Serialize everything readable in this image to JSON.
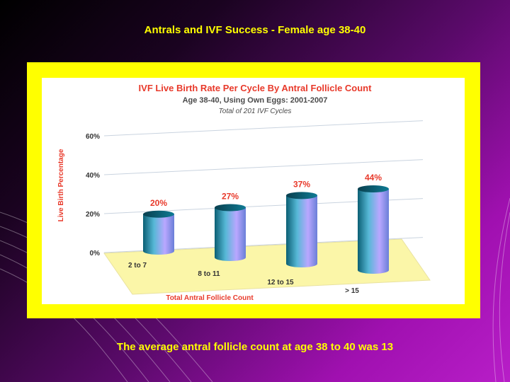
{
  "slide": {
    "title": "Antrals and IVF Success - Female age 38-40",
    "caption": "The average antral follicle count at age 38 to 40 was 13"
  },
  "colors": {
    "frame": "#ffff00",
    "chart_title": "#e8392a",
    "subtitle": "#4a4a4a",
    "axis_label": "#e8392a",
    "floor": "#fbf6a8",
    "bar_top": "#0b5f74",
    "bar_side": "#56b8d6",
    "bar_light": "#b9a7ff"
  },
  "chart_data": {
    "type": "bar",
    "title": "IVF Live Birth Rate Per Cycle By Antral Follicle Count",
    "subtitle": "Age 38-40, Using  Own Eggs: 2001-2007",
    "subtitle2": "Total of 201 IVF Cycles",
    "xlabel": "Total Antral Follicle Count",
    "ylabel": "Live Birth Percentage",
    "categories": [
      "2 to 7",
      "8 to 11",
      "12 to 15",
      "> 15"
    ],
    "values": [
      20,
      27,
      37,
      44
    ],
    "data_labels": [
      "20%",
      "27%",
      "37%",
      "44%"
    ],
    "yticks": [
      "0%",
      "20%",
      "40%",
      "60%"
    ],
    "ylim": [
      0,
      60
    ],
    "grid": true,
    "style": "3d-cylinder"
  }
}
